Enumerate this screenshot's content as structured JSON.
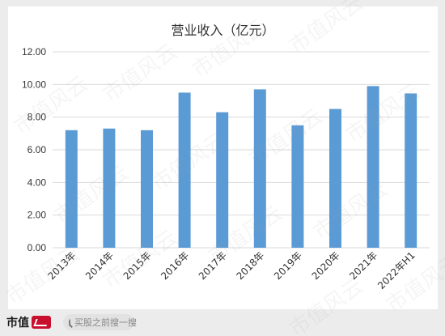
{
  "title": "营业收入（亿元）",
  "watermark": "市值风云",
  "footer": {
    "logo_text": "市值",
    "search_placeholder": "买股之前搜一搜"
  },
  "colors": {
    "bar": "#5b9bd5",
    "grid": "#d9d9d9",
    "axis_text": "#333333"
  },
  "chart_data": {
    "type": "bar",
    "title": "营业收入（亿元）",
    "categories": [
      "2013年",
      "2014年",
      "2015年",
      "2016年",
      "2017年",
      "2018年",
      "2019年",
      "2020年",
      "2021年",
      "2022年H1"
    ],
    "values": [
      7.2,
      7.3,
      7.2,
      9.5,
      8.3,
      9.7,
      7.5,
      8.5,
      9.9,
      9.45
    ],
    "yticks": [
      "0.00",
      "2.00",
      "4.00",
      "6.00",
      "8.00",
      "10.00",
      "12.00"
    ],
    "ylim": [
      0,
      12
    ],
    "xlabel": "",
    "ylabel": "",
    "grid": true,
    "legend": "none"
  }
}
